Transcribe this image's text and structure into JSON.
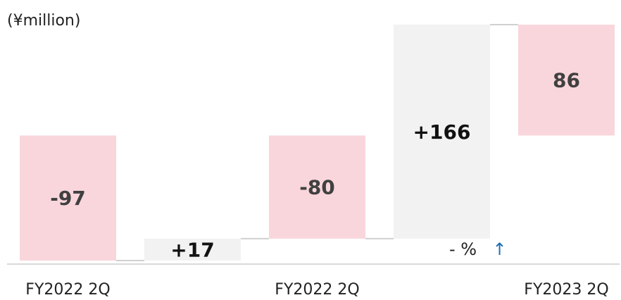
{
  "chart_data": {
    "type": "waterfall",
    "unit_label": "(¥million)",
    "categories": [
      "FY2022 2Q",
      null,
      "FY2022 2Q",
      null,
      "FY2023 2Q"
    ],
    "values": [
      -97,
      17,
      -80,
      166,
      86
    ],
    "value_labels": [
      "-97",
      "+17",
      "-80",
      "+166",
      "86"
    ],
    "total_color": "#f9d6dc",
    "change_color": "#f2f2f2",
    "annotations": [
      {
        "text": "- %",
        "color": "#222222"
      },
      {
        "text": "↑",
        "color": "#1f6fb2"
      }
    ]
  }
}
